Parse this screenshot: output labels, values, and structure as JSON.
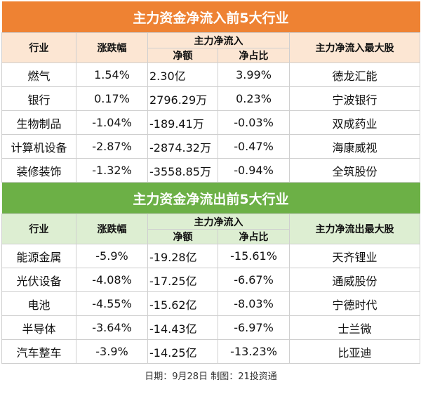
{
  "inflow": {
    "title": "主力资金净流入前5大行业",
    "headers": {
      "industry": "行业",
      "change": "涨跌幅",
      "net_inflow_group": "主力净流入",
      "amount": "净额",
      "ratio": "净占比",
      "top_stock": "主力净流入最大股"
    },
    "rows": [
      {
        "industry": "燃气",
        "change": "1.54%",
        "amount": "2.30亿",
        "ratio": "3.99%",
        "top_stock": "德龙汇能"
      },
      {
        "industry": "银行",
        "change": "0.17%",
        "amount": "2796.29万",
        "ratio": "0.23%",
        "top_stock": "宁波银行"
      },
      {
        "industry": "生物制品",
        "change": "-1.04%",
        "amount": "-189.41万",
        "ratio": "-0.03%",
        "top_stock": "双成药业"
      },
      {
        "industry": "计算机设备",
        "change": "-2.87%",
        "amount": "-2874.32万",
        "ratio": "-0.47%",
        "top_stock": "海康威视"
      },
      {
        "industry": "装修装饰",
        "change": "-1.32%",
        "amount": "-3558.85万",
        "ratio": "-0.94%",
        "top_stock": "全筑股份"
      }
    ]
  },
  "outflow": {
    "title": "主力资金净流出前5大行业",
    "headers": {
      "industry": "行业",
      "change": "涨跌幅",
      "net_inflow_group": "主力净流入",
      "amount": "净额",
      "ratio": "净占比",
      "top_stock": "主力净流出最大股"
    },
    "rows": [
      {
        "industry": "能源金属",
        "change": "-5.9%",
        "amount": "-19.28亿",
        "ratio": "-15.61%",
        "top_stock": "天齐锂业"
      },
      {
        "industry": "光伏设备",
        "change": "-4.08%",
        "amount": "-17.25亿",
        "ratio": "-6.67%",
        "top_stock": "通威股份"
      },
      {
        "industry": "电池",
        "change": "-4.55%",
        "amount": "-15.62亿",
        "ratio": "-8.03%",
        "top_stock": "宁德时代"
      },
      {
        "industry": "半导体",
        "change": "-3.64%",
        "amount": "-14.43亿",
        "ratio": "-6.97%",
        "top_stock": "士兰微"
      },
      {
        "industry": "汽车整车",
        "change": "-3.9%",
        "amount": "-14.25亿",
        "ratio": "-13.23%",
        "top_stock": "比亚迪"
      }
    ]
  },
  "footer": "日期：9月28日 制图：21投资通",
  "colors": {
    "inflow_banner": "#ee8233",
    "inflow_header": "#fce6d3",
    "outflow_banner": "#6cb046",
    "outflow_header": "#ddeed2"
  }
}
